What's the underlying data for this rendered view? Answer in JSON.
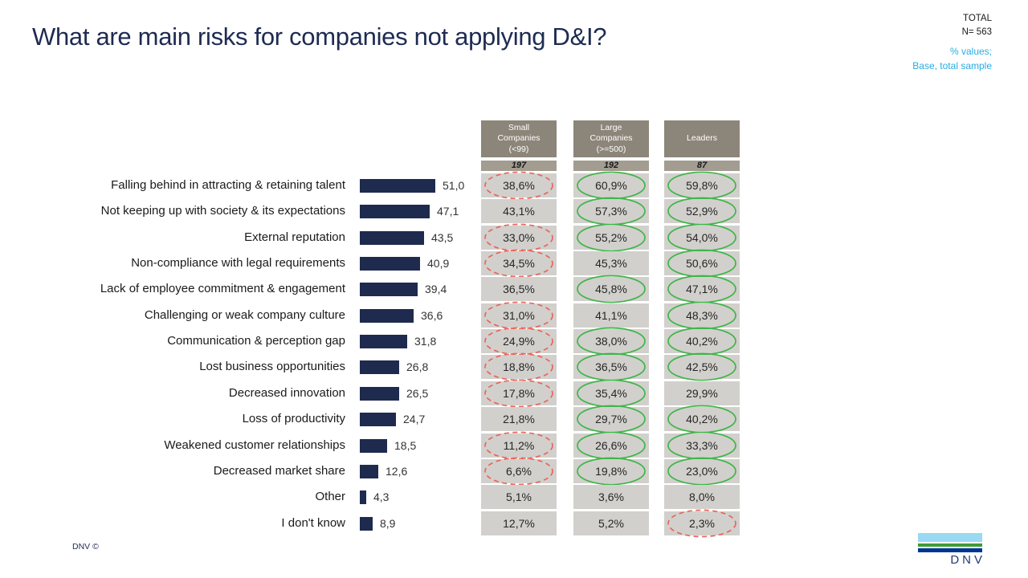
{
  "slide": {
    "title": "What are main risks for companies not applying D&I?",
    "meta": {
      "total_label": "TOTAL",
      "n_label": "N= 563",
      "note_line1": "% values;",
      "note_line2": "Base, total sample"
    },
    "footer": {
      "copyright": "DNV ©",
      "logo_text": "DNV"
    }
  },
  "colors": {
    "bar_navy": "#1e2b4e",
    "title_navy": "#1e2b52",
    "header_taupe": "#8c8579",
    "n_row_taupe": "#a29c91",
    "cell_gray": "#d2d0cc",
    "highlight_green": "#3fb54a",
    "highlight_red": "#e8655c",
    "note_cyan": "#29abe2",
    "logo_sky": "#99d9f2",
    "logo_green": "#3f9c35",
    "logo_blue": "#003591"
  },
  "columns": [
    {
      "id": "small",
      "header": "Small\nCompanies\n(<99)",
      "n": "197"
    },
    {
      "id": "large",
      "header": "Large\nCompanies\n(>=500)",
      "n": "192"
    },
    {
      "id": "leaders",
      "header": "Leaders",
      "n": "87"
    }
  ],
  "rows": [
    {
      "label": "Falling behind in attracting & retaining talent",
      "value": 51.0,
      "value_label": "51,0",
      "cells": [
        {
          "text": "38,6%",
          "marker": "red"
        },
        {
          "text": "60,9%",
          "marker": "green"
        },
        {
          "text": "59,8%",
          "marker": "green"
        }
      ]
    },
    {
      "label": "Not keeping up with society & its expectations",
      "value": 47.1,
      "value_label": "47,1",
      "cells": [
        {
          "text": "43,1%",
          "marker": null
        },
        {
          "text": "57,3%",
          "marker": "green"
        },
        {
          "text": "52,9%",
          "marker": "green"
        }
      ]
    },
    {
      "label": "External reputation",
      "value": 43.5,
      "value_label": "43,5",
      "cells": [
        {
          "text": "33,0%",
          "marker": "red"
        },
        {
          "text": "55,2%",
          "marker": "green"
        },
        {
          "text": "54,0%",
          "marker": "green"
        }
      ]
    },
    {
      "label": "Non-compliance with legal requirements",
      "value": 40.9,
      "value_label": "40,9",
      "cells": [
        {
          "text": "34,5%",
          "marker": "red"
        },
        {
          "text": "45,3%",
          "marker": null
        },
        {
          "text": "50,6%",
          "marker": "green"
        }
      ]
    },
    {
      "label": "Lack of employee commitment & engagement",
      "value": 39.4,
      "value_label": "39,4",
      "cells": [
        {
          "text": "36,5%",
          "marker": null
        },
        {
          "text": "45,8%",
          "marker": "green"
        },
        {
          "text": "47,1%",
          "marker": "green"
        }
      ]
    },
    {
      "label": "Challenging or weak company culture",
      "value": 36.6,
      "value_label": "36,6",
      "cells": [
        {
          "text": "31,0%",
          "marker": "red"
        },
        {
          "text": "41,1%",
          "marker": null
        },
        {
          "text": "48,3%",
          "marker": "green"
        }
      ]
    },
    {
      "label": "Communication & perception gap",
      "value": 31.8,
      "value_label": "31,8",
      "cells": [
        {
          "text": "24,9%",
          "marker": "red"
        },
        {
          "text": "38,0%",
          "marker": "green"
        },
        {
          "text": "40,2%",
          "marker": "green"
        }
      ]
    },
    {
      "label": "Lost business opportunities",
      "value": 26.8,
      "value_label": "26,8",
      "cells": [
        {
          "text": "18,8%",
          "marker": "red"
        },
        {
          "text": "36,5%",
          "marker": "green"
        },
        {
          "text": "42,5%",
          "marker": "green"
        }
      ]
    },
    {
      "label": "Decreased innovation",
      "value": 26.5,
      "value_label": "26,5",
      "cells": [
        {
          "text": "17,8%",
          "marker": "red"
        },
        {
          "text": "35,4%",
          "marker": "green"
        },
        {
          "text": "29,9%",
          "marker": null
        }
      ]
    },
    {
      "label": "Loss of productivity",
      "value": 24.7,
      "value_label": "24,7",
      "cells": [
        {
          "text": "21,8%",
          "marker": null
        },
        {
          "text": "29,7%",
          "marker": "green"
        },
        {
          "text": "40,2%",
          "marker": "green"
        }
      ]
    },
    {
      "label": "Weakened customer relationships",
      "value": 18.5,
      "value_label": "18,5",
      "cells": [
        {
          "text": "11,2%",
          "marker": "red"
        },
        {
          "text": "26,6%",
          "marker": "green"
        },
        {
          "text": "33,3%",
          "marker": "green"
        }
      ]
    },
    {
      "label": "Decreased market share",
      "value": 12.6,
      "value_label": "12,6",
      "cells": [
        {
          "text": "6,6%",
          "marker": "red"
        },
        {
          "text": "19,8%",
          "marker": "green"
        },
        {
          "text": "23,0%",
          "marker": "green"
        }
      ]
    },
    {
      "label": "Other",
      "value": 4.3,
      "value_label": "4,3",
      "cells": [
        {
          "text": "5,1%",
          "marker": null
        },
        {
          "text": "3,6%",
          "marker": null
        },
        {
          "text": "8,0%",
          "marker": null
        }
      ]
    },
    {
      "label": "I don't know",
      "value": 8.9,
      "value_label": "8,9",
      "cells": [
        {
          "text": "12,7%",
          "marker": null
        },
        {
          "text": "5,2%",
          "marker": null
        },
        {
          "text": "2,3%",
          "marker": "red"
        }
      ]
    }
  ],
  "chart_data": {
    "type": "bar",
    "orientation": "horizontal",
    "title": "What are main risks for companies not applying D&I?",
    "categories": [
      "Falling behind in attracting & retaining talent",
      "Not keeping up with society & its expectations",
      "External reputation",
      "Non-compliance with legal requirements",
      "Lack of employee commitment & engagement",
      "Challenging or weak company culture",
      "Communication & perception gap",
      "Lost business opportunities",
      "Decreased innovation",
      "Loss of productivity",
      "Weakened customer relationships",
      "Decreased market share",
      "Other",
      "I don't know"
    ],
    "series": [
      {
        "name": "Total (N=563)",
        "values": [
          51.0,
          47.1,
          43.5,
          40.9,
          39.4,
          36.6,
          31.8,
          26.8,
          26.5,
          24.7,
          18.5,
          12.6,
          4.3,
          8.9
        ]
      },
      {
        "name": "Small Companies (<99), N=197",
        "values": [
          38.6,
          43.1,
          33.0,
          34.5,
          36.5,
          31.0,
          24.9,
          18.8,
          17.8,
          21.8,
          11.2,
          6.6,
          5.1,
          12.7
        ]
      },
      {
        "name": "Large Companies (>=500), N=192",
        "values": [
          60.9,
          57.3,
          55.2,
          45.3,
          45.8,
          41.1,
          38.0,
          36.5,
          35.4,
          29.7,
          26.6,
          19.8,
          3.6,
          5.2
        ]
      },
      {
        "name": "Leaders, N=87",
        "values": [
          59.8,
          52.9,
          54.0,
          50.6,
          47.1,
          48.3,
          40.2,
          42.5,
          29.9,
          40.2,
          33.3,
          23.0,
          8.0,
          2.3
        ]
      }
    ],
    "annotations": "Red dashed ellipses mark significantly low values (mostly Small Companies); green solid ellipses mark significantly high values (mostly Large Companies and Leaders).",
    "xlim": [
      0,
      60
    ],
    "units": "%",
    "grid": false,
    "legend_position": "column headers above table"
  }
}
